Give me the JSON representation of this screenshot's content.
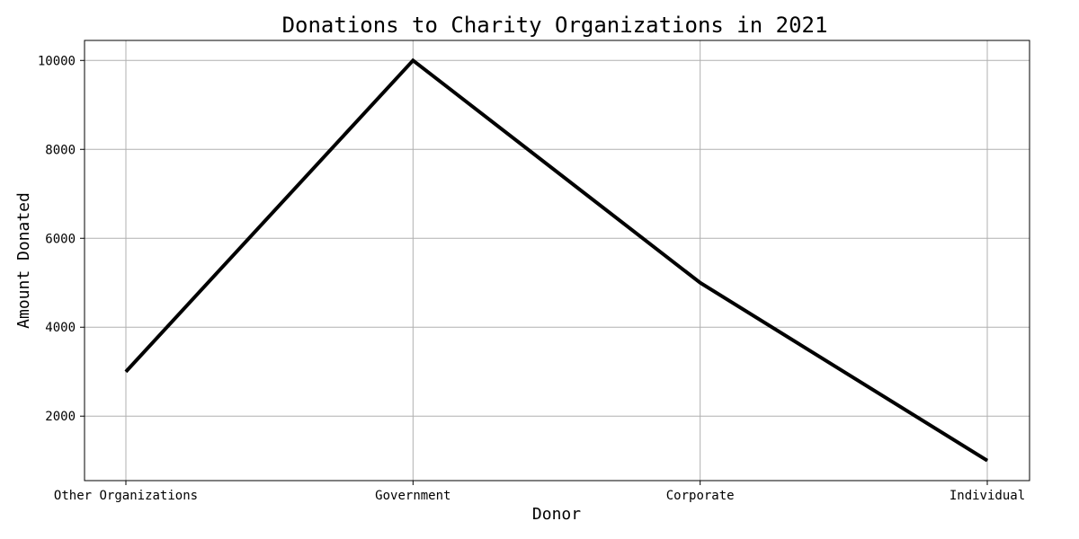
{
  "chart_data": {
    "type": "line",
    "title": "Donations to Charity Organizations in 2021",
    "xlabel": "Donor",
    "ylabel": "Amount Donated",
    "categories": [
      "Other Organizations",
      "Government",
      "Corporate",
      "Individual"
    ],
    "series": [
      {
        "values": [
          3000,
          10000,
          5000,
          1000
        ],
        "color": "#000000"
      }
    ],
    "ylim": [
      550,
      10450
    ],
    "yticks": [
      2000,
      4000,
      6000,
      8000,
      10000
    ],
    "grid": true,
    "legend": "none"
  }
}
